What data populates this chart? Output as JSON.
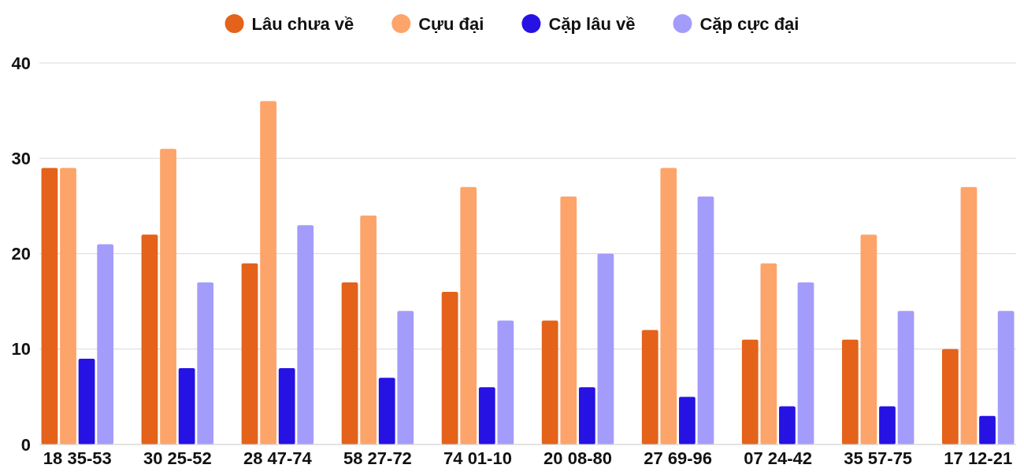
{
  "chart_data": {
    "type": "bar",
    "categories": [
      "18 35-53",
      "30 25-52",
      "28 47-74",
      "58 27-72",
      "74 01-10",
      "20 08-80",
      "27 69-96",
      "07 24-42",
      "35 57-75",
      "17 12-21"
    ],
    "series": [
      {
        "name": "Lâu chưa về",
        "color": "#e4621a",
        "values": [
          29,
          22,
          19,
          17,
          16,
          13,
          12,
          11,
          11,
          10
        ]
      },
      {
        "name": "Cựu đại",
        "color": "#fda46a",
        "values": [
          29,
          31,
          36,
          24,
          27,
          26,
          29,
          19,
          22,
          27
        ]
      },
      {
        "name": "Cặp lâu về",
        "color": "#2512e3",
        "values": [
          9,
          8,
          8,
          7,
          6,
          6,
          5,
          4,
          4,
          3
        ]
      },
      {
        "name": "Cặp cực đại",
        "color": "#a49cfb",
        "values": [
          21,
          17,
          23,
          14,
          13,
          20,
          26,
          17,
          14,
          14
        ]
      }
    ],
    "ylim": [
      0,
      40
    ],
    "yticks": [
      0,
      10,
      20,
      30,
      40
    ],
    "grid": "y",
    "legend": "top"
  }
}
